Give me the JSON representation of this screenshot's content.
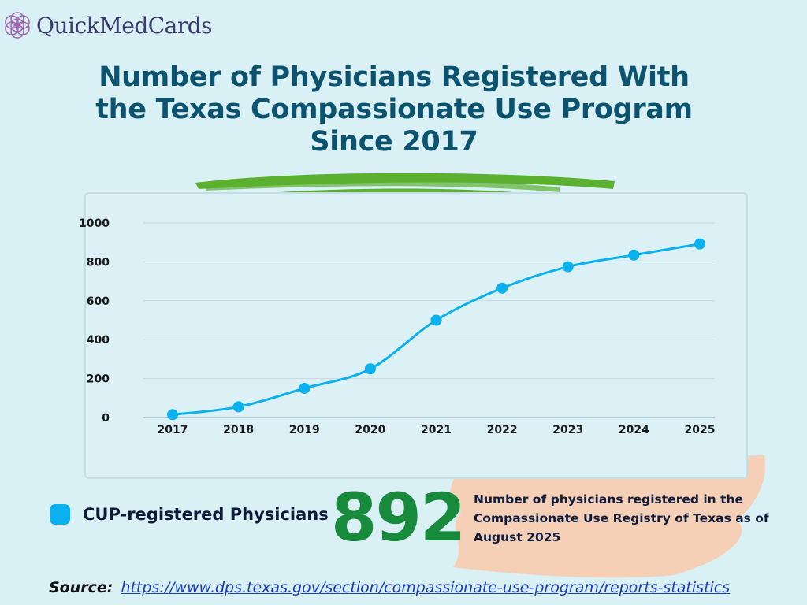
{
  "brand": {
    "name": "QuickMedCards",
    "name_part1": "Quick",
    "name_part2": "MedCards"
  },
  "colors": {
    "title": "#0c5370",
    "line": "#0bb0ee",
    "accent_green": "#178a3c",
    "brush_green": "#5cb030",
    "peach": "#f6d0b6"
  },
  "chart_data": {
    "type": "line",
    "title": "Number of Physicians Registered With the Texas Compassionate Use Program Since 2017",
    "categories": [
      "2017",
      "2018",
      "2019",
      "2020",
      "2021",
      "2022",
      "2023",
      "2024",
      "2025"
    ],
    "series": [
      {
        "name": "CUP-registered Physicians",
        "values": [
          15,
          55,
          150,
          250,
          500,
          665,
          775,
          835,
          892
        ]
      }
    ],
    "y_ticks": [
      "0",
      "200",
      "400",
      "600",
      "800",
      "1000"
    ],
    "ylim": [
      0,
      1000
    ],
    "xlabel": "",
    "ylabel": "",
    "grid": true,
    "legend": "bottom-left"
  },
  "legend": {
    "label": "CUP-registered Physicians"
  },
  "highlight": {
    "value": "892",
    "description": "Number of physicians registered in the Compassionate Use Registry of Texas as of August 2025"
  },
  "source": {
    "label": "Source:",
    "url_text": "https://www.dps.texas.gov/section/compassionate-use-program/reports-statistics"
  }
}
